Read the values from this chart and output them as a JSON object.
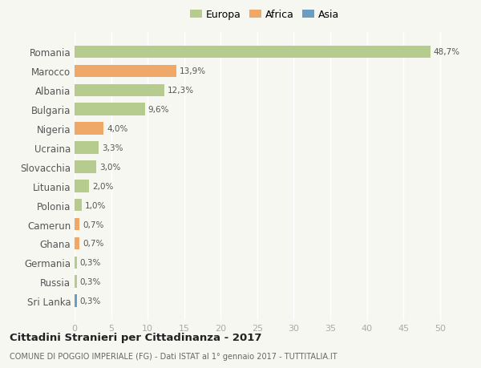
{
  "countries": [
    "Romania",
    "Marocco",
    "Albania",
    "Bulgaria",
    "Nigeria",
    "Ucraina",
    "Slovacchia",
    "Lituania",
    "Polonia",
    "Camerun",
    "Ghana",
    "Germania",
    "Russia",
    "Sri Lanka"
  ],
  "values": [
    48.7,
    13.9,
    12.3,
    9.6,
    4.0,
    3.3,
    3.0,
    2.0,
    1.0,
    0.7,
    0.7,
    0.3,
    0.3,
    0.3
  ],
  "labels": [
    "48,7%",
    "13,9%",
    "12,3%",
    "9,6%",
    "4,0%",
    "3,3%",
    "3,0%",
    "2,0%",
    "1,0%",
    "0,7%",
    "0,7%",
    "0,3%",
    "0,3%",
    "0,3%"
  ],
  "continents": [
    "Europa",
    "Africa",
    "Europa",
    "Europa",
    "Africa",
    "Europa",
    "Europa",
    "Europa",
    "Europa",
    "Africa",
    "Africa",
    "Europa",
    "Europa",
    "Asia"
  ],
  "colors": {
    "Europa": "#b5cc8e",
    "Africa": "#f0a868",
    "Asia": "#6b9dc2"
  },
  "bg_color": "#f7f7f2",
  "title": "Cittadini Stranieri per Cittadinanza - 2017",
  "subtitle": "COMUNE DI POGGIO IMPERIALE (FG) - Dati ISTAT al 1° gennaio 2017 - TUTTITALIA.IT",
  "xlim": [
    0,
    52
  ],
  "xticks": [
    0,
    5,
    10,
    15,
    20,
    25,
    30,
    35,
    40,
    45,
    50
  ]
}
